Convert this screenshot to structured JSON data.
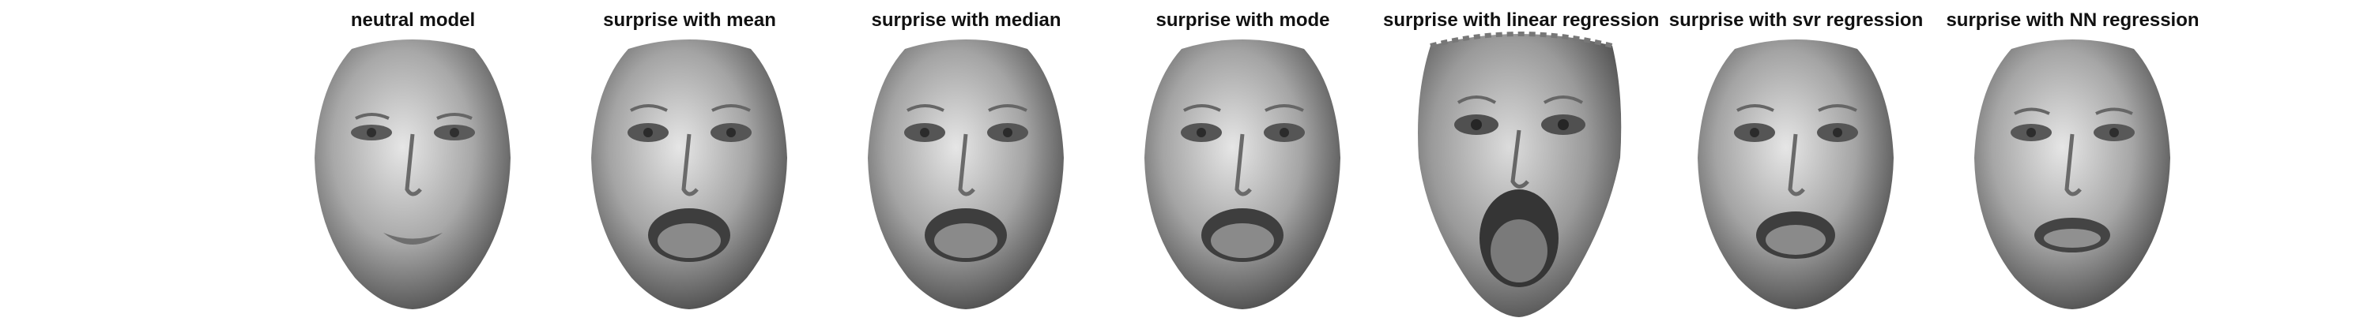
{
  "panels": [
    {
      "title": "neutral model",
      "mouth": "neutral"
    },
    {
      "title": "surprise with mean",
      "mouth": "open"
    },
    {
      "title": "surprise with median",
      "mouth": "open"
    },
    {
      "title": "surprise with mode",
      "mouth": "open"
    },
    {
      "title": "surprise with linear regression",
      "mouth": "wide-open"
    },
    {
      "title": "surprise with svr regression",
      "mouth": "open"
    },
    {
      "title": "surprise with NN regression",
      "mouth": "slightly-open"
    }
  ]
}
